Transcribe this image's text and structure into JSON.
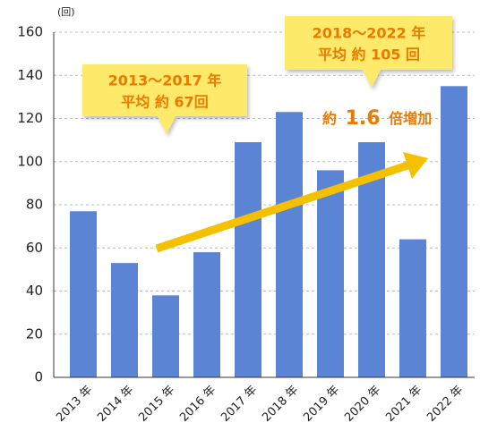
{
  "chart_data": {
    "type": "bar",
    "y_unit": "(回)",
    "categories": [
      "2013 年",
      "2014 年",
      "2015 年",
      "2016 年",
      "2017 年",
      "2018 年",
      "2019 年",
      "2020 年",
      "2021 年",
      "2022 年"
    ],
    "values": [
      77,
      53,
      38,
      58,
      109,
      123,
      96,
      109,
      64,
      135
    ],
    "color": "#5b84d4",
    "ylim": [
      0,
      160
    ],
    "yticks": [
      0,
      20,
      40,
      60,
      80,
      100,
      120,
      140,
      160
    ],
    "grid": true,
    "annotations": {
      "callout_1": [
        "2013～2017 年",
        "平均 約 67回"
      ],
      "callout_2": [
        "2018～2022 年",
        "平均 約 105 回"
      ],
      "growth": [
        "約",
        "1.6",
        "倍増加"
      ]
    }
  }
}
